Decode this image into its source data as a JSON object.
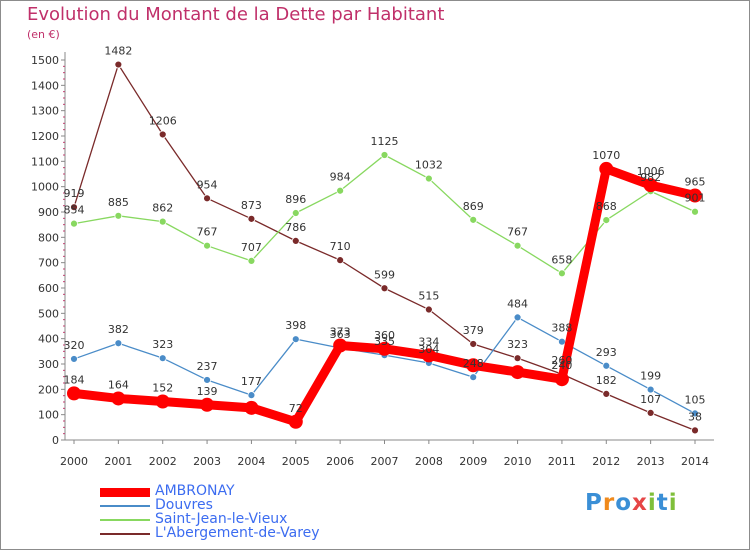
{
  "title": "Evolution du Montant de la Dette par Habitant",
  "unit_label": "(en €)",
  "logo": {
    "text": "Proxiti",
    "colors": [
      "#3a8fd6",
      "#f08a1c",
      "#3a8fd6",
      "#e64646",
      "#7fbf3a",
      "#3a8fd6",
      "#7fbf3a"
    ]
  },
  "chart_data": {
    "type": "line",
    "title": "Evolution du Montant de la Dette par Habitant",
    "ylabel": "(en €)",
    "x": [
      2000,
      2001,
      2002,
      2003,
      2004,
      2005,
      2006,
      2007,
      2008,
      2009,
      2010,
      2011,
      2012,
      2013,
      2014
    ],
    "ylim": [
      0,
      1500
    ],
    "yticks": [
      0,
      100,
      200,
      300,
      400,
      500,
      600,
      700,
      800,
      900,
      1000,
      1100,
      1200,
      1300,
      1400,
      1500
    ],
    "grid": false,
    "legend_position": "bottom-left",
    "series": [
      {
        "name": "AMBRONAY",
        "color": "#ff0000",
        "values": [
          184,
          164,
          152,
          139,
          127,
          72,
          373,
          360,
          334,
          295,
          268,
          240,
          1070,
          1006,
          965
        ],
        "labels": [
          "184",
          "164",
          "152",
          "139",
          "",
          "72",
          "373",
          "360",
          "334",
          "",
          "",
          "240",
          "1070",
          "1006",
          "965"
        ]
      },
      {
        "name": "Douvres",
        "color": "#4a8cc8",
        "values": [
          320,
          382,
          323,
          237,
          177,
          398,
          363,
          335,
          304,
          248,
          484,
          388,
          293,
          199,
          105
        ],
        "labels": [
          "320",
          "382",
          "323",
          "237",
          "177",
          "398",
          "363",
          "335",
          "304",
          "248",
          "484",
          "388",
          "293",
          "199",
          "105"
        ]
      },
      {
        "name": "Saint-Jean-le-Vieux",
        "color": "#88d860",
        "values": [
          854,
          885,
          862,
          767,
          707,
          896,
          984,
          1125,
          1032,
          869,
          767,
          658,
          868,
          982,
          901
        ],
        "labels": [
          "854",
          "885",
          "862",
          "767",
          "707",
          "896",
          "984",
          "1125",
          "1032",
          "869",
          "767",
          "658",
          "868",
          "982",
          "901"
        ]
      },
      {
        "name": "L'Abergement-de-Varey",
        "color": "#7a2a2a",
        "values": [
          919,
          1482,
          1206,
          954,
          873,
          786,
          710,
          599,
          515,
          379,
          323,
          260,
          182,
          107,
          38
        ],
        "labels": [
          "919",
          "1482",
          "1206",
          "954",
          "873",
          "786",
          "710",
          "599",
          "515",
          "379",
          "323",
          "260",
          "182",
          "107",
          "38"
        ]
      }
    ]
  }
}
